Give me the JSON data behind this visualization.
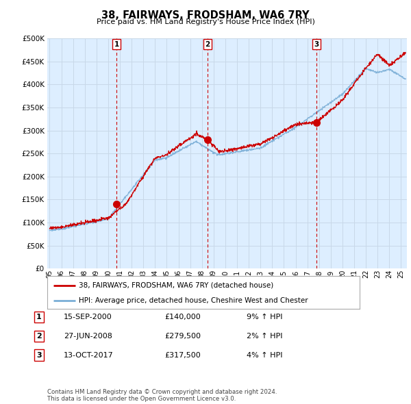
{
  "title": "38, FAIRWAYS, FRODSHAM, WA6 7RY",
  "subtitle": "Price paid vs. HM Land Registry's House Price Index (HPI)",
  "ytick_values": [
    0,
    50000,
    100000,
    150000,
    200000,
    250000,
    300000,
    350000,
    400000,
    450000,
    500000
  ],
  "ylim": [
    0,
    500000
  ],
  "xlim_start": 1994.8,
  "xlim_end": 2025.5,
  "sales": [
    {
      "date_dec": 2000.71,
      "price": 140000,
      "label": "1"
    },
    {
      "date_dec": 2008.49,
      "price": 279500,
      "label": "2"
    },
    {
      "date_dec": 2017.79,
      "price": 317500,
      "label": "3"
    }
  ],
  "sale_line_color": "#cc0000",
  "hpi_line_color": "#7aaed6",
  "chart_bg_color": "#ddeeff",
  "legend_sale_label": "38, FAIRWAYS, FRODSHAM, WA6 7RY (detached house)",
  "legend_hpi_label": "HPI: Average price, detached house, Cheshire West and Chester",
  "table_rows": [
    {
      "num": "1",
      "date": "15-SEP-2000",
      "price": "£140,000",
      "hpi": "9% ↑ HPI"
    },
    {
      "num": "2",
      "date": "27-JUN-2008",
      "price": "£279,500",
      "hpi": "2% ↑ HPI"
    },
    {
      "num": "3",
      "date": "13-OCT-2017",
      "price": "£317,500",
      "hpi": "4% ↑ HPI"
    }
  ],
  "footer": "Contains HM Land Registry data © Crown copyright and database right 2024.\nThis data is licensed under the Open Government Licence v3.0.",
  "background_color": "#ffffff",
  "grid_color": "#c8d8e8",
  "xtick_years": [
    1995,
    1996,
    1997,
    1998,
    1999,
    2000,
    2001,
    2002,
    2003,
    2004,
    2005,
    2006,
    2007,
    2008,
    2009,
    2010,
    2011,
    2012,
    2013,
    2014,
    2015,
    2016,
    2017,
    2018,
    2019,
    2020,
    2021,
    2022,
    2023,
    2024,
    2025
  ]
}
